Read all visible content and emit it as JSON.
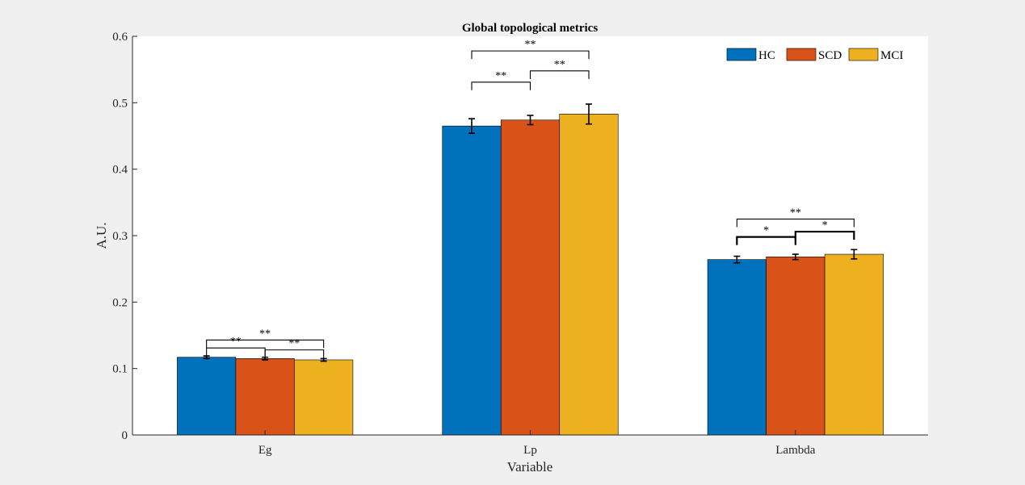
{
  "chart_data": {
    "type": "bar",
    "title": "Global topological metrics",
    "xlabel": "Variable",
    "ylabel": "A.U.",
    "categories": [
      "Eg",
      "Lp",
      "Lambda"
    ],
    "ylim": [
      0,
      0.6
    ],
    "yticks": [
      0,
      0.1,
      0.2,
      0.3,
      0.4,
      0.5,
      0.6
    ],
    "ytick_labels": [
      "0",
      "0.1",
      "0.2",
      "0.3",
      "0.4",
      "0.5",
      "0.6"
    ],
    "grid": false,
    "legend_position": "top-right",
    "series": [
      {
        "name": "HC",
        "color": "#0072BD",
        "values": [
          0.117,
          0.465,
          0.264
        ],
        "errors": [
          0.002,
          0.011,
          0.005
        ]
      },
      {
        "name": "SCD",
        "color": "#D95319",
        "values": [
          0.115,
          0.474,
          0.268
        ],
        "errors": [
          0.002,
          0.007,
          0.004
        ]
      },
      {
        "name": "MCI",
        "color": "#EDB120",
        "values": [
          0.113,
          0.483,
          0.272
        ],
        "errors": [
          0.002,
          0.015,
          0.007
        ]
      }
    ],
    "significance": [
      {
        "category": 0,
        "from": 0,
        "to": 2,
        "y": 0.143,
        "label": "**"
      },
      {
        "category": 0,
        "from": 0,
        "to": 1,
        "y": 0.131,
        "label": "**"
      },
      {
        "category": 0,
        "from": 1,
        "to": 2,
        "y": 0.128,
        "label": "**"
      },
      {
        "category": 1,
        "from": 0,
        "to": 2,
        "y": 0.578,
        "label": "**"
      },
      {
        "category": 1,
        "from": 0,
        "to": 1,
        "y": 0.531,
        "label": "**"
      },
      {
        "category": 1,
        "from": 1,
        "to": 2,
        "y": 0.548,
        "label": "**"
      },
      {
        "category": 2,
        "from": 0,
        "to": 2,
        "y": 0.325,
        "label": "**"
      },
      {
        "category": 2,
        "from": 0,
        "to": 1,
        "y": 0.298,
        "label": "*"
      },
      {
        "category": 2,
        "from": 1,
        "to": 2,
        "y": 0.306,
        "label": "*"
      }
    ]
  }
}
